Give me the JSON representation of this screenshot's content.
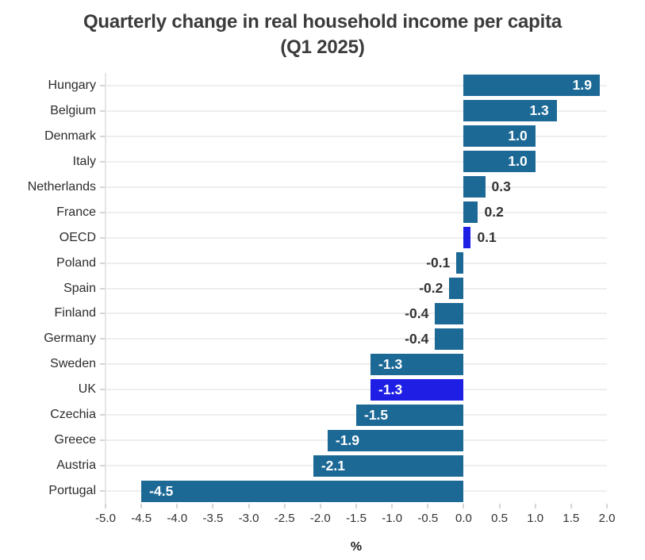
{
  "header": {
    "title_line1": "Quarterly change in real household income per capita",
    "title_line2": "(Q1 2025)"
  },
  "chart_data": {
    "type": "bar",
    "orientation": "horizontal",
    "title": "Quarterly change in real household income per capita (Q1 2025)",
    "categories": [
      "Hungary",
      "Belgium",
      "Denmark",
      "Italy",
      "Netherlands",
      "France",
      "OECD",
      "Poland",
      "Spain",
      "Finland",
      "Germany",
      "Sweden",
      "UK",
      "Czechia",
      "Greece",
      "Austria",
      "Portugal"
    ],
    "values": [
      1.9,
      1.3,
      1.0,
      1.0,
      0.3,
      0.2,
      0.1,
      -0.1,
      -0.2,
      -0.4,
      -0.4,
      -1.3,
      -1.3,
      -1.5,
      -1.9,
      -2.1,
      -4.5
    ],
    "value_labels": [
      "1.9",
      "1.3",
      "1.0",
      "1.0",
      "0.3",
      "0.2",
      "0.1",
      "-0.1",
      "-0.2",
      "-0.4",
      "-0.4",
      "-1.3",
      "-1.3",
      "-1.5",
      "-1.9",
      "-2.1",
      "-4.5"
    ],
    "highlight_categories": [
      "OECD",
      "UK"
    ],
    "xlabel": "%",
    "xlim": [
      -5.0,
      2.0
    ],
    "xticks": [
      -5.0,
      -4.5,
      -4.0,
      -3.5,
      -3.0,
      -2.5,
      -2.0,
      -1.5,
      -1.0,
      -0.5,
      0.0,
      0.5,
      1.0,
      1.5,
      2.0
    ],
    "xtick_labels": [
      "-5.0",
      "-4.5",
      "-4.0",
      "-3.5",
      "-3.0",
      "-2.5",
      "-2.0",
      "-1.5",
      "-1.0",
      "-0.5",
      "0.0",
      "0.5",
      "1.0",
      "1.5",
      "2.0"
    ],
    "grid": true,
    "legend": "none",
    "colors": {
      "bar_default": "#1d6996",
      "bar_highlight": "#1e1ee4",
      "value_label_dark": "#333333",
      "value_label_light": "#ffffff",
      "gridline": "#eeeeee",
      "axis_line": "#e6e6e6",
      "tick_mark": "#d6d6d6"
    }
  }
}
